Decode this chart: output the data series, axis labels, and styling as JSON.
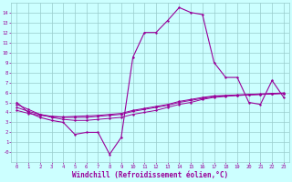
{
  "x_values": [
    0,
    1,
    2,
    3,
    4,
    5,
    6,
    7,
    8,
    9,
    10,
    11,
    12,
    13,
    14,
    15,
    16,
    17,
    18,
    19,
    20,
    21,
    22,
    23
  ],
  "line_main": [
    5.0,
    4.0,
    3.5,
    3.2,
    3.0,
    1.8,
    2.0,
    2.0,
    -0.2,
    1.5,
    9.5,
    12.0,
    12.0,
    13.2,
    14.5,
    14.0,
    13.8,
    9.0,
    7.5,
    7.5,
    5.0,
    4.8,
    7.2,
    5.5
  ],
  "line_a": [
    4.8,
    4.3,
    3.8,
    3.5,
    3.3,
    3.2,
    3.2,
    3.3,
    3.4,
    3.5,
    3.8,
    4.0,
    4.2,
    4.5,
    4.8,
    5.0,
    5.3,
    5.5,
    5.6,
    5.7,
    5.75,
    5.8,
    5.85,
    5.9
  ],
  "line_b": [
    4.5,
    4.1,
    3.8,
    3.6,
    3.5,
    3.5,
    3.5,
    3.6,
    3.7,
    3.8,
    4.1,
    4.3,
    4.5,
    4.7,
    5.0,
    5.2,
    5.4,
    5.6,
    5.65,
    5.7,
    5.75,
    5.8,
    5.85,
    5.9
  ],
  "line_c": [
    4.2,
    3.9,
    3.7,
    3.6,
    3.55,
    3.6,
    3.65,
    3.7,
    3.8,
    3.9,
    4.2,
    4.4,
    4.6,
    4.8,
    5.1,
    5.3,
    5.5,
    5.65,
    5.7,
    5.75,
    5.8,
    5.85,
    5.9,
    5.95
  ],
  "line_color": "#990099",
  "bg_color": "#ccffff",
  "grid_color": "#99cccc",
  "ylim_min": -1,
  "ylim_max": 15,
  "xlim_min": -0.5,
  "xlim_max": 23.5,
  "xlabel": "Windchill (Refroidissement éolien,°C)",
  "ytick_labels": [
    "-0",
    "1",
    "2",
    "3",
    "4",
    "5",
    "6",
    "7",
    "8",
    "9",
    "10",
    "11",
    "12",
    "13",
    "14"
  ],
  "ytick_values": [
    0,
    1,
    2,
    3,
    4,
    5,
    6,
    7,
    8,
    9,
    10,
    11,
    12,
    13,
    14
  ],
  "xtick_values": [
    0,
    1,
    2,
    3,
    4,
    5,
    6,
    7,
    8,
    9,
    10,
    11,
    12,
    13,
    14,
    15,
    16,
    17,
    18,
    19,
    20,
    21,
    22,
    23
  ]
}
